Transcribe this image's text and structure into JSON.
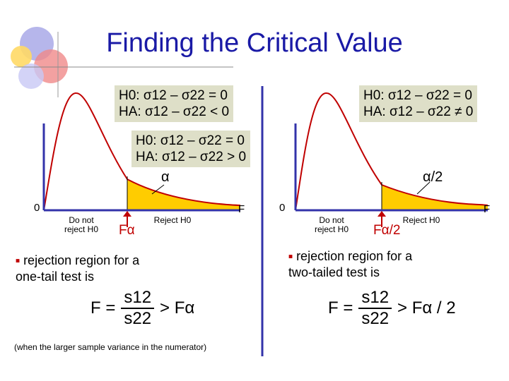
{
  "title": "Finding the Critical Value",
  "left_panel": {
    "hyp_lower": {
      "h0": "H0: σ12 – σ22 = 0",
      "ha": "HA: σ12 – σ22 < 0"
    },
    "hyp_upper": {
      "h0": "H0: σ12 – σ22 = 0",
      "ha": "HA: σ12 – σ22 > 0"
    },
    "alpha_label": "α",
    "origin_label": "0",
    "axis_end_label": "F",
    "do_not_reject": "Do not reject H0",
    "reject": "Reject H0",
    "critical_label": "Fα",
    "bullet_text": "rejection region for a one-tail test is",
    "formula": {
      "lhs": "F =",
      "num": "s12",
      "den": "s22",
      "rhs": "> Fα"
    },
    "note": "(when the larger sample variance in the numerator)"
  },
  "right_panel": {
    "hyp": {
      "h0": "H0: σ12 – σ22 = 0",
      "ha": "HA: σ12 – σ22 ≠ 0"
    },
    "alpha_label": "α/2",
    "origin_label": "0",
    "axis_end_label": "F",
    "do_not_reject": "Do not reject H0",
    "reject": "Reject H0",
    "critical_label": "Fα/2",
    "bullet_text": "rejection region for a two-tailed test is",
    "formula": {
      "lhs": "F =",
      "num": "s12",
      "den": "s22",
      "rhs": "> Fα / 2"
    }
  },
  "colors": {
    "title": "#1a1aa6",
    "curve": "#c00000",
    "shade": "#ffcc00",
    "box": "#dedfc8",
    "divider": "#3333aa"
  }
}
